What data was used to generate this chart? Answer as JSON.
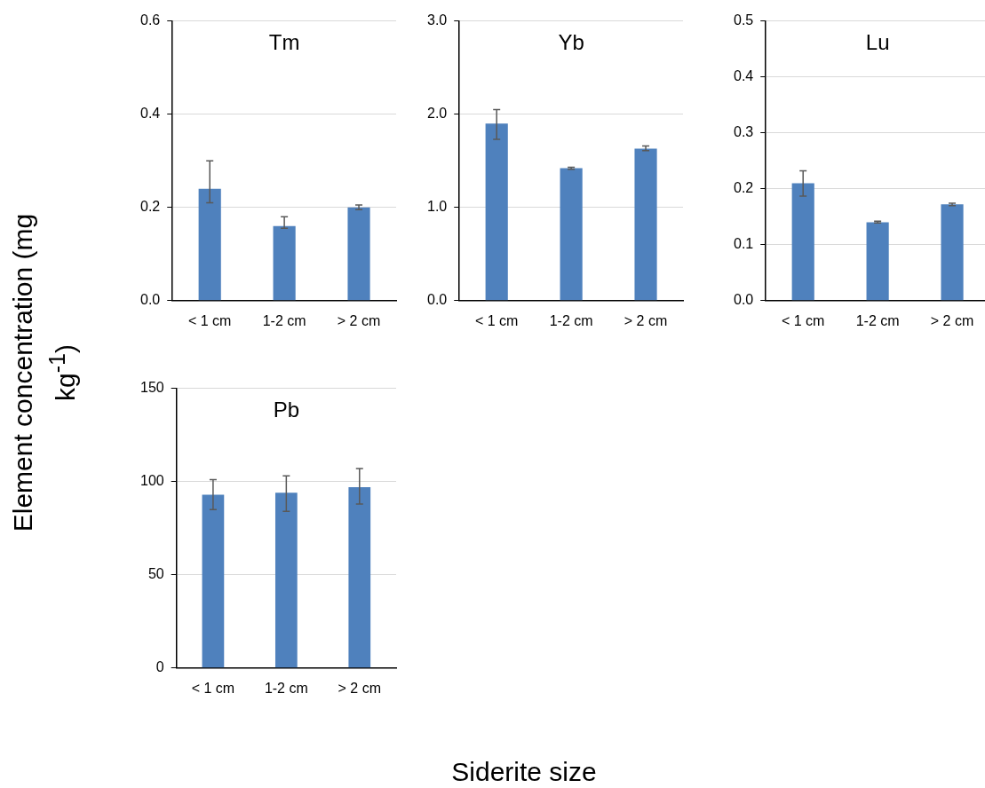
{
  "chart_data": [
    {
      "type": "bar",
      "title": "Tm",
      "ylabel": "Element concentration (mg kg$^{-1}$)",
      "categories": [
        "< 1 cm",
        "1-2 cm",
        "> 2 cm"
      ],
      "values": [
        0.24,
        0.16,
        0.2
      ],
      "errors": [
        [
          0.21,
          0.3
        ],
        [
          0.155,
          0.18
        ],
        [
          0.195,
          0.205
        ]
      ],
      "color": "#4f81bd",
      "ylim": [
        0,
        0.6
      ],
      "yticks": [
        {
          "value": 0,
          "label": "0.0"
        },
        0.2,
        0.4,
        0.6
      ],
      "grid": "y"
    },
    {
      "type": "bar",
      "title": "Yb",
      "categories": [
        "< 1 cm",
        "1-2 cm",
        "> 2 cm"
      ],
      "values": [
        1.9,
        1.42,
        1.63
      ],
      "errors": [
        [
          1.73,
          2.05
        ],
        [
          1.41,
          1.43
        ],
        [
          1.61,
          1.66
        ]
      ],
      "color": "#4f81bd",
      "ylim": [
        0,
        3
      ],
      "yticks": [
        {
          "value": 0,
          "label": "0.0"
        },
        {
          "value": 1,
          "label": "1.0"
        },
        {
          "value": 2,
          "label": "2.0"
        },
        {
          "value": 3,
          "label": "3.0"
        }
      ],
      "grid": "y"
    },
    {
      "type": "bar",
      "title": "Lu",
      "categories": [
        "< 1 cm",
        "1-2 cm",
        "> 2 cm"
      ],
      "values": [
        0.21,
        0.14,
        0.172
      ],
      "errors": [
        [
          0.187,
          0.232
        ],
        [
          0.139,
          0.142
        ],
        [
          0.17,
          0.174
        ]
      ],
      "color": "#4f81bd",
      "ylim": [
        0,
        0.5
      ],
      "yticks": [
        {
          "value": 0,
          "label": "0.0"
        },
        0.1,
        0.2,
        0.3,
        0.4,
        0.5
      ],
      "grid": "y"
    },
    {
      "type": "bar",
      "title": "Pb",
      "xlabel": "Siderite size",
      "categories": [
        "< 1 cm",
        "1-2 cm",
        "> 2 cm"
      ],
      "values": [
        93,
        94,
        97
      ],
      "errors": [
        [
          85,
          101
        ],
        [
          84,
          103
        ],
        [
          88,
          107
        ]
      ],
      "color": "#4f81bd",
      "ylim": [
        0,
        150
      ],
      "yticks": [
        0,
        50,
        100,
        150
      ],
      "grid": "y"
    }
  ]
}
